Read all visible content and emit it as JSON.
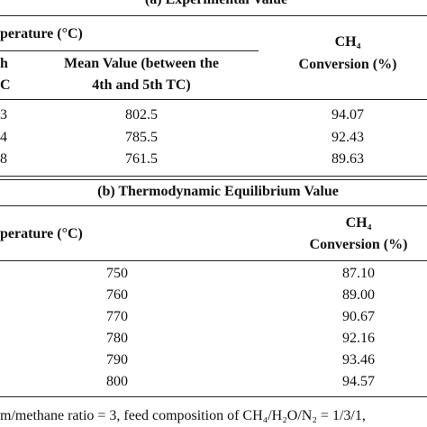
{
  "section_a": {
    "title": "(a) Experimental Value",
    "header": {
      "temperature": "perature (°C)",
      "left_top": "h",
      "left_bottom": "C",
      "mean_line1": "Mean Value (between the",
      "mean_line2": "4th and 5th TC)",
      "conv_line1": "CH₄",
      "conv_line2": "Conversion (%)"
    },
    "rows": [
      [
        "3",
        "802.5",
        "94.07"
      ],
      [
        "4",
        "785.5",
        "92.43"
      ],
      [
        "8",
        "761.5",
        "89.63"
      ]
    ]
  },
  "section_b": {
    "title": "(b) Thermodynamic Equilibrium Value",
    "header": {
      "temperature": "perature (°C)",
      "conv_line1": "CH₄",
      "conv_line2": "Conversion (%)"
    },
    "rows": [
      [
        "750",
        "87.10"
      ],
      [
        "760",
        "89.00"
      ],
      [
        "770",
        "90.67"
      ],
      [
        "780",
        "92.16"
      ],
      [
        "790",
        "93.46"
      ],
      [
        "800",
        "94.57"
      ]
    ]
  },
  "footnote": "m/methane ratio = 3, feed composition of CH₄/H₂O/N₂ = 1/3/1,"
}
